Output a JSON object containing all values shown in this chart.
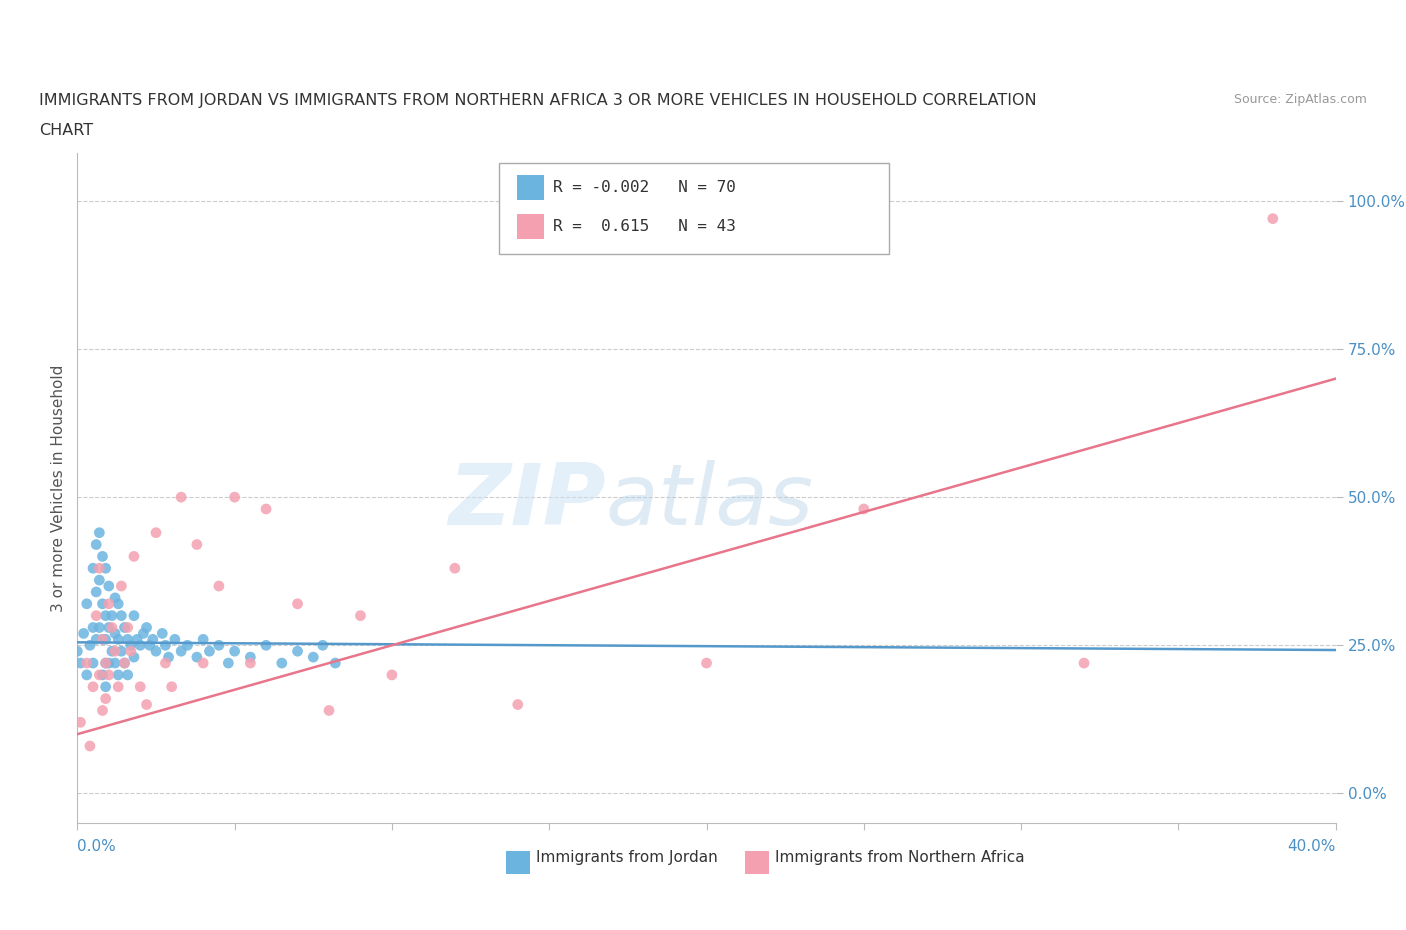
{
  "title_line1": "IMMIGRANTS FROM JORDAN VS IMMIGRANTS FROM NORTHERN AFRICA 3 OR MORE VEHICLES IN HOUSEHOLD CORRELATION",
  "title_line2": "CHART",
  "source_text": "Source: ZipAtlas.com",
  "xlabel_start": "0.0%",
  "xlabel_end": "40.0%",
  "ylabel": "3 or more Vehicles in Household",
  "ytick_labels": [
    "0.0%",
    "25.0%",
    "50.0%",
    "75.0%",
    "100.0%"
  ],
  "ytick_values": [
    0.0,
    0.25,
    0.5,
    0.75,
    1.0
  ],
  "xlim": [
    0.0,
    0.4
  ],
  "ylim": [
    -0.05,
    1.08
  ],
  "legend_label1": "Immigrants from Jordan",
  "legend_label2": "Immigrants from Northern Africa",
  "R1": -0.002,
  "N1": 70,
  "R2": 0.615,
  "N2": 43,
  "color_jordan": "#6cb4e0",
  "color_north_africa": "#f4a0b0",
  "color_jordan_line": "#5599cc",
  "color_north_africa_line": "#e8758a",
  "watermark_zip": "ZIP",
  "watermark_atlas": "atlas",
  "jordan_x": [
    0.0,
    0.001,
    0.002,
    0.003,
    0.003,
    0.004,
    0.005,
    0.005,
    0.005,
    0.006,
    0.006,
    0.006,
    0.007,
    0.007,
    0.007,
    0.008,
    0.008,
    0.008,
    0.008,
    0.009,
    0.009,
    0.009,
    0.009,
    0.009,
    0.01,
    0.01,
    0.01,
    0.011,
    0.011,
    0.012,
    0.012,
    0.012,
    0.013,
    0.013,
    0.013,
    0.014,
    0.014,
    0.015,
    0.015,
    0.016,
    0.016,
    0.017,
    0.018,
    0.018,
    0.019,
    0.02,
    0.021,
    0.022,
    0.023,
    0.024,
    0.025,
    0.027,
    0.028,
    0.029,
    0.031,
    0.033,
    0.035,
    0.038,
    0.04,
    0.042,
    0.045,
    0.048,
    0.05,
    0.055,
    0.06,
    0.065,
    0.07,
    0.075,
    0.078,
    0.082
  ],
  "jordan_y": [
    0.24,
    0.22,
    0.27,
    0.32,
    0.2,
    0.25,
    0.38,
    0.28,
    0.22,
    0.42,
    0.34,
    0.26,
    0.44,
    0.36,
    0.28,
    0.4,
    0.32,
    0.26,
    0.2,
    0.38,
    0.3,
    0.26,
    0.22,
    0.18,
    0.35,
    0.28,
    0.22,
    0.3,
    0.24,
    0.33,
    0.27,
    0.22,
    0.32,
    0.26,
    0.2,
    0.3,
    0.24,
    0.28,
    0.22,
    0.26,
    0.2,
    0.25,
    0.3,
    0.23,
    0.26,
    0.25,
    0.27,
    0.28,
    0.25,
    0.26,
    0.24,
    0.27,
    0.25,
    0.23,
    0.26,
    0.24,
    0.25,
    0.23,
    0.26,
    0.24,
    0.25,
    0.22,
    0.24,
    0.23,
    0.25,
    0.22,
    0.24,
    0.23,
    0.25,
    0.22
  ],
  "north_africa_x": [
    0.001,
    0.003,
    0.004,
    0.005,
    0.006,
    0.007,
    0.007,
    0.008,
    0.008,
    0.009,
    0.009,
    0.01,
    0.01,
    0.011,
    0.012,
    0.013,
    0.014,
    0.015,
    0.016,
    0.017,
    0.018,
    0.02,
    0.022,
    0.025,
    0.028,
    0.03,
    0.033,
    0.038,
    0.04,
    0.045,
    0.05,
    0.055,
    0.06,
    0.07,
    0.08,
    0.09,
    0.1,
    0.12,
    0.14,
    0.2,
    0.25,
    0.32,
    0.38
  ],
  "north_africa_y": [
    0.12,
    0.22,
    0.08,
    0.18,
    0.3,
    0.38,
    0.2,
    0.14,
    0.26,
    0.22,
    0.16,
    0.32,
    0.2,
    0.28,
    0.24,
    0.18,
    0.35,
    0.22,
    0.28,
    0.24,
    0.4,
    0.18,
    0.15,
    0.44,
    0.22,
    0.18,
    0.5,
    0.42,
    0.22,
    0.35,
    0.5,
    0.22,
    0.48,
    0.32,
    0.14,
    0.3,
    0.2,
    0.38,
    0.15,
    0.22,
    0.48,
    0.22,
    0.97
  ],
  "jordan_line_y": [
    0.255,
    0.242
  ],
  "north_africa_line_y": [
    0.1,
    0.7
  ]
}
